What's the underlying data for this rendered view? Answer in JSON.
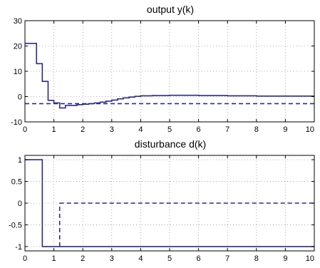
{
  "colors": {
    "series": "#2a2a8c",
    "grid": "#9a9a9a",
    "axes": "#000000",
    "background": "#ffffff"
  },
  "chart_data": [
    {
      "type": "line",
      "title": "output y(k)",
      "xlabel": "",
      "ylabel": "",
      "xlim": [
        0,
        10
      ],
      "ylim": [
        -10,
        30
      ],
      "xticks": [
        0,
        1,
        2,
        3,
        4,
        5,
        6,
        7,
        8,
        9,
        10
      ],
      "yticks": [
        -10,
        0,
        10,
        20,
        30
      ],
      "grid": true,
      "series": [
        {
          "style": "solid-staircase",
          "x": [
            0,
            0.4,
            0.6,
            0.8,
            1.0,
            1.2,
            1.4,
            1.6,
            1.8,
            2.0,
            2.2,
            2.4,
            2.6,
            2.8,
            3.0,
            3.2,
            3.4,
            3.6,
            3.8,
            4.0,
            4.4,
            5.0,
            6.0,
            7.0,
            8.0,
            9.0,
            10.0
          ],
          "y": [
            21,
            13,
            6,
            -1.5,
            -2.5,
            -4.5,
            -3.5,
            -3.5,
            -3.2,
            -3.0,
            -2.8,
            -2.5,
            -2.2,
            -1.8,
            -1.4,
            -0.9,
            -0.5,
            -0.2,
            0.1,
            0.3,
            0.4,
            0.5,
            0.4,
            0.3,
            0.2,
            0.2,
            0.2
          ]
        },
        {
          "style": "dashed-reference",
          "x": [
            0,
            10
          ],
          "y": [
            -2.8,
            -2.8
          ]
        }
      ]
    },
    {
      "type": "line",
      "title": "disturbance d(k)",
      "xlabel": "",
      "ylabel": "",
      "xlim": [
        0,
        10
      ],
      "ylim": [
        -1.1,
        1.1
      ],
      "xticks": [
        0,
        1,
        2,
        3,
        4,
        5,
        6,
        7,
        8,
        9,
        10
      ],
      "yticks": [
        -1,
        -0.5,
        0,
        0.5,
        1
      ],
      "grid": true,
      "series": [
        {
          "style": "solid-staircase",
          "x": [
            0,
            0.6,
            1.2
          ],
          "y": [
            1,
            -1,
            -1
          ]
        },
        {
          "style": "dashed-staircase",
          "x": [
            1.2,
            10
          ],
          "y": [
            0,
            0
          ]
        }
      ]
    }
  ]
}
